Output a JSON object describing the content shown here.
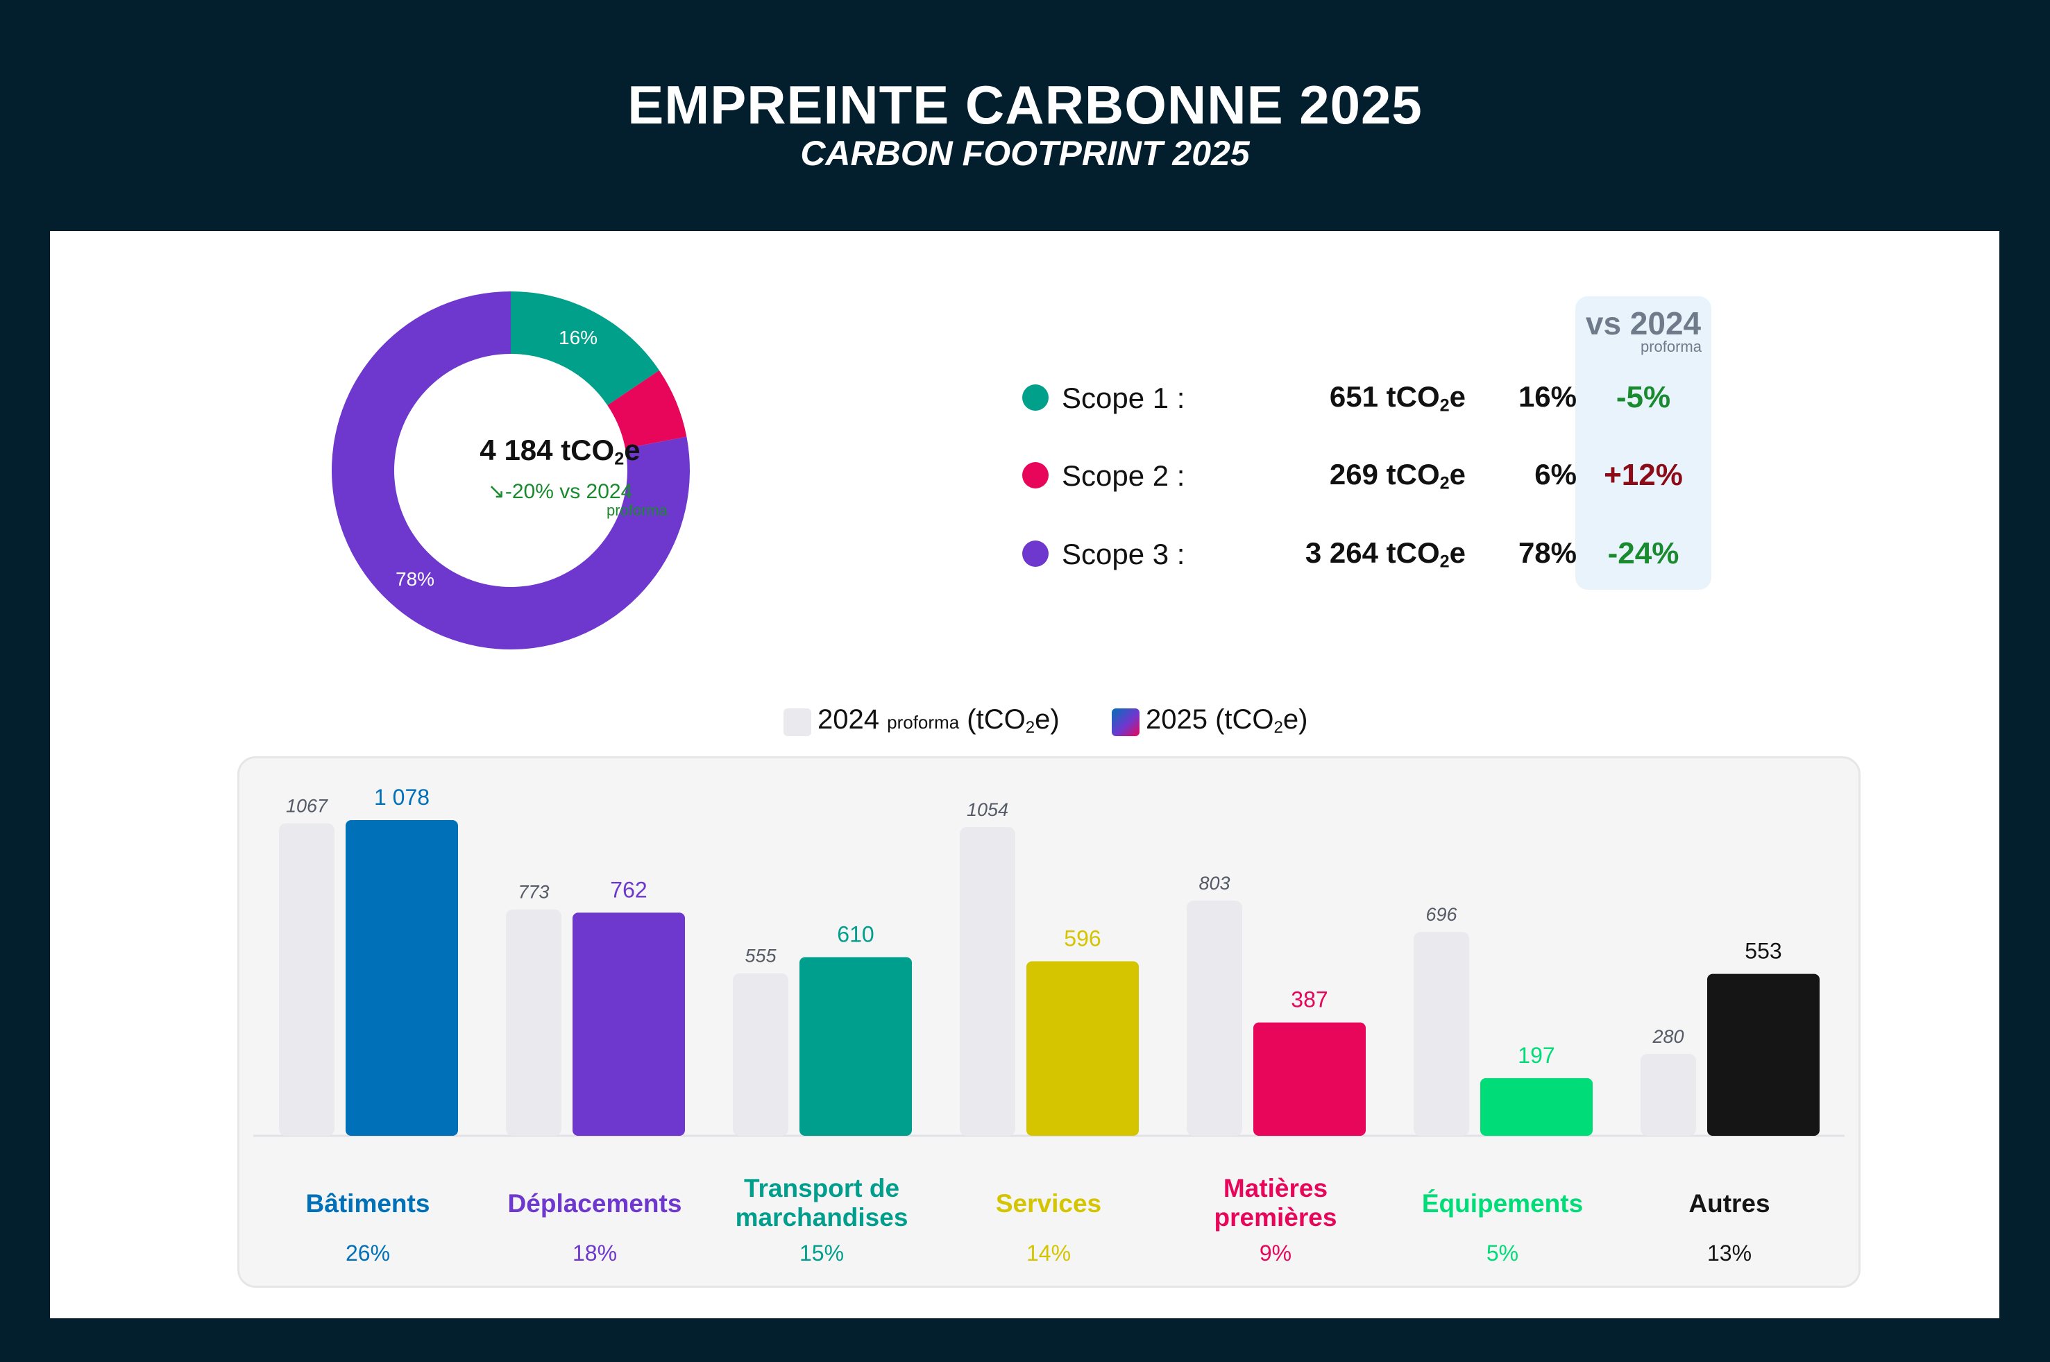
{
  "title": "EMPREINTE CARBONNE 2025",
  "subtitle": "CARBON FOOTPRINT 2025",
  "donut": {
    "total_value": "4 184 tCO",
    "total_sub": "2",
    "total_suffix": "e",
    "delta_text": "↘-20%  vs 2024",
    "delta_sub": "proforma",
    "label_scope1": "16%",
    "label_scope3": "78%"
  },
  "comparison_header": {
    "title": "vs 2024",
    "sub": "proforma"
  },
  "scopes": [
    {
      "name": "Scope 1 :",
      "value": "651 tCO",
      "sub": "2",
      "suffix": "e",
      "pct": "16%",
      "delta": "-5%",
      "color": "#00a08a",
      "delta_color": "#1a8a2f"
    },
    {
      "name": "Scope 2 :",
      "value": "269 tCO",
      "sub": "2",
      "suffix": "e",
      "pct": "6%",
      "delta": "+12%",
      "color": "#e8065a",
      "delta_color": "#8c0b16"
    },
    {
      "name": "Scope 3 :",
      "value": "3 264 tCO",
      "sub": "2",
      "suffix": "e",
      "pct": "78%",
      "delta": "-24%",
      "color": "#6e38cf",
      "delta_color": "#1a8a2f"
    }
  ],
  "legend": {
    "item_2024_main": "2024",
    "item_2024_small": "proforma",
    "item_2024_unit": "(tCO",
    "item_2025_main": "2025 (tCO",
    "sub": "2",
    "suffix": "e)"
  },
  "chart_data": [
    {
      "type": "pie",
      "title": "4 184 tCO2e",
      "categories": [
        "Scope 1",
        "Scope 2",
        "Scope 3"
      ],
      "values": [
        651,
        269,
        3264
      ],
      "percent_labels": [
        "16%",
        "6%",
        "78%"
      ],
      "colors": [
        "#00a08a",
        "#e8065a",
        "#6e38cf"
      ]
    },
    {
      "type": "bar",
      "categories": [
        "Bâtiments",
        "Déplacements",
        "Transport de marchandises",
        "Services",
        "Matières premières",
        "Équipements",
        "Autres"
      ],
      "category_lines": [
        [
          "Bâtiments"
        ],
        [
          "Déplacements"
        ],
        [
          "Transport de",
          "marchandises"
        ],
        [
          "Services"
        ],
        [
          "Matières",
          "premières"
        ],
        [
          "Équipements"
        ],
        [
          "Autres"
        ]
      ],
      "series": [
        {
          "name": "2024 proforma (tCO2e)",
          "values": [
            1067,
            773,
            555,
            1054,
            803,
            696,
            280
          ],
          "labels": [
            "1067",
            "773",
            "555",
            "1054",
            "803",
            "696",
            "280"
          ]
        },
        {
          "name": "2025 (tCO2e)",
          "values": [
            1078,
            762,
            610,
            596,
            387,
            197,
            553
          ],
          "labels": [
            "1 078",
            "762",
            "610",
            "596",
            "387",
            "197",
            "553"
          ]
        }
      ],
      "shares": [
        "26%",
        "18%",
        "15%",
        "14%",
        "9%",
        "5%",
        "13%"
      ],
      "colors": [
        "#0070b8",
        "#6e38cf",
        "#009e8c",
        "#d4c500",
        "#e8065a",
        "#00dc78",
        "#151515"
      ],
      "color_2024": "#e9e9ee",
      "ylim": [
        0,
        1100
      ]
    }
  ]
}
